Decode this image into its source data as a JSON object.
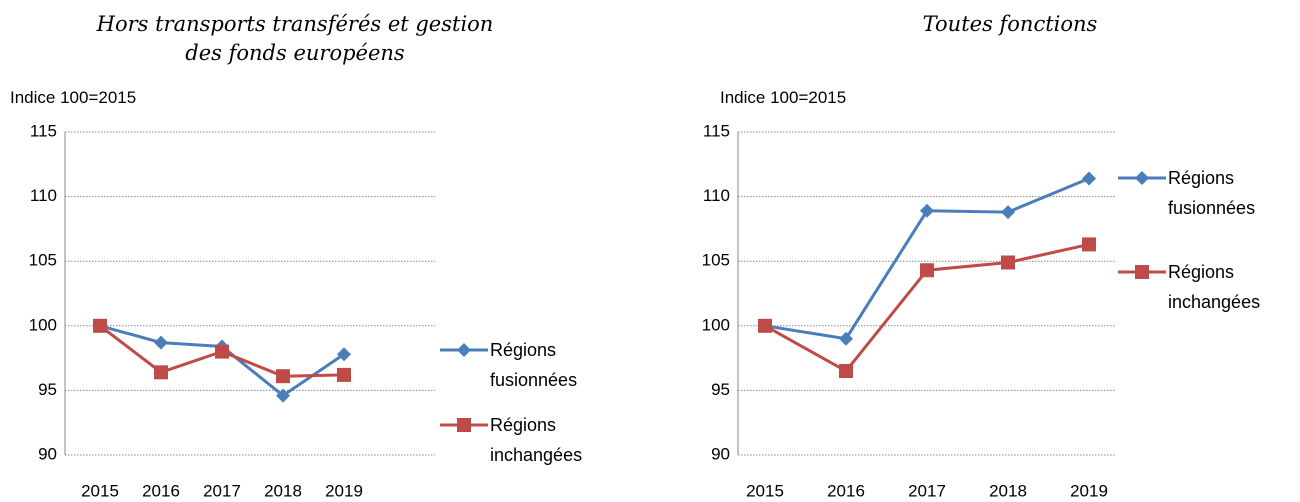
{
  "chart_data": [
    {
      "type": "line",
      "title": "Hors transports transférés et gestion des fonds européens",
      "y_label": "Indice 100=2015",
      "categories": [
        "2015",
        "2016",
        "2017",
        "2018",
        "2019"
      ],
      "series": [
        {
          "name": "Régions fusionnées",
          "color": "#4a7ebb",
          "marker": "diamond",
          "values": [
            100,
            98.7,
            98.4,
            94.6,
            97.8
          ]
        },
        {
          "name": "Régions inchangées",
          "color": "#be4b48",
          "marker": "square",
          "values": [
            100,
            96.4,
            98.0,
            96.1,
            96.2
          ]
        }
      ],
      "ylim": [
        90,
        115
      ],
      "yticks": [
        90,
        95,
        100,
        105,
        110,
        115
      ],
      "grid": true,
      "legend": "right"
    },
    {
      "type": "line",
      "title": "Toutes fonctions",
      "y_label": "Indice 100=2015",
      "categories": [
        "2015",
        "2016",
        "2017",
        "2018",
        "2019"
      ],
      "series": [
        {
          "name": "Régions fusionnées",
          "color": "#4a7ebb",
          "marker": "diamond",
          "values": [
            100,
            99.0,
            108.9,
            108.8,
            111.4
          ]
        },
        {
          "name": "Régions inchangées",
          "color": "#be4b48",
          "marker": "square",
          "values": [
            100,
            96.5,
            104.3,
            104.9,
            106.3
          ]
        }
      ],
      "ylim": [
        90,
        115
      ],
      "yticks": [
        90,
        95,
        100,
        105,
        110,
        115
      ],
      "grid": true,
      "legend": "right"
    }
  ]
}
